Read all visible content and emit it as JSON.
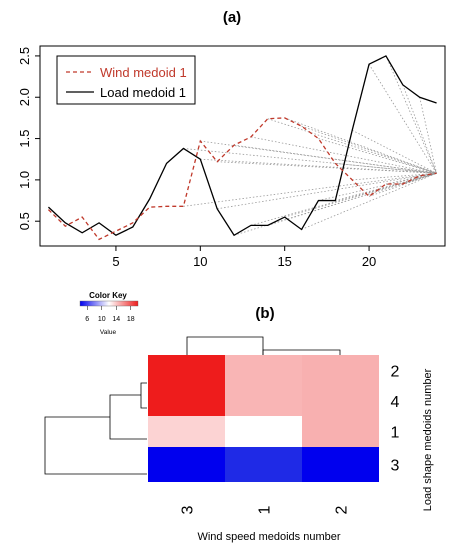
{
  "chart_data": [
    {
      "type": "line",
      "title": "(a)",
      "x": [
        1,
        2,
        3,
        4,
        5,
        6,
        7,
        8,
        9,
        10,
        11,
        12,
        13,
        14,
        15,
        16,
        17,
        18,
        19,
        20,
        21,
        22,
        23,
        24
      ],
      "xticks": [
        "5",
        "10",
        "15",
        "20"
      ],
      "yticks": [
        "0.5",
        "1.0",
        "1.5",
        "2.0",
        "2.5"
      ],
      "xlim": [
        0.5,
        24.5
      ],
      "ylim": [
        0.2,
        2.62
      ],
      "legend_position": "top-left",
      "colors": {
        "wind": "#c0392b",
        "load": "#000000",
        "links": "#999999"
      },
      "series": [
        {
          "name": "Wind medoid 1",
          "style": "dashed",
          "values": [
            0.64,
            0.44,
            0.55,
            0.28,
            0.38,
            0.48,
            0.67,
            0.68,
            0.68,
            1.47,
            1.22,
            1.42,
            1.52,
            1.74,
            1.75,
            1.65,
            1.5,
            1.2,
            1.0,
            0.8,
            0.95,
            0.95,
            1.05,
            1.08
          ]
        },
        {
          "name": "Load medoid 1",
          "style": "solid",
          "values": [
            0.67,
            0.48,
            0.36,
            0.48,
            0.33,
            0.43,
            0.77,
            1.2,
            1.38,
            1.25,
            0.65,
            0.33,
            0.45,
            0.45,
            0.55,
            0.4,
            0.75,
            0.75,
            1.6,
            2.4,
            2.5,
            2.15,
            2.0,
            1.93
          ]
        }
      ]
    },
    {
      "type": "heatmap",
      "title": "(b)",
      "color_key": {
        "title": "Color Key",
        "ticks": [
          "6",
          "10",
          "14",
          "18"
        ],
        "label": "Value"
      },
      "col_labels": [
        "3",
        "1",
        "2"
      ],
      "row_labels": [
        "2",
        "4",
        "1",
        "3"
      ],
      "xlabel": "Wind speed medoids number",
      "ylabel": "Load shape medoids number",
      "colors": [
        [
          "#ee1c1c",
          "#f9b5b5",
          "#f8b0b0"
        ],
        [
          "#ee1c1c",
          "#f9b5b5",
          "#f8b0b0"
        ],
        [
          "#fcd3d3",
          "#ffffff",
          "#f8b0b0"
        ],
        [
          "#0000ee",
          "#1f2ae6",
          "#0000ee"
        ]
      ]
    }
  ]
}
